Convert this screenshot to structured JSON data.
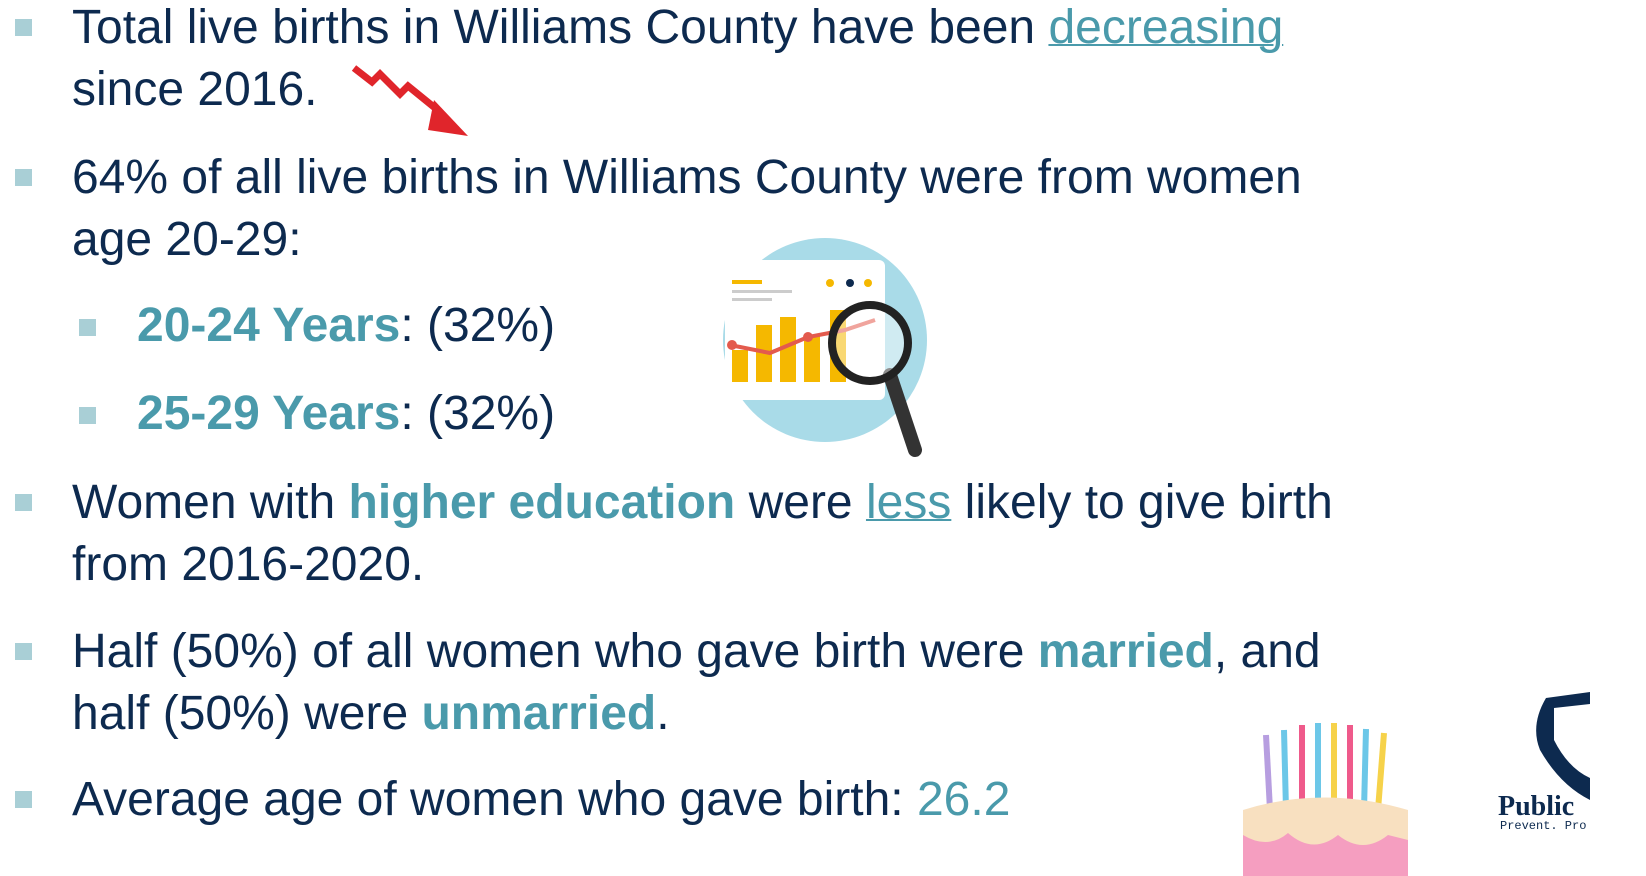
{
  "bullets": [
    {
      "text": "Total live births in Williams County have been ",
      "link": "decreasing",
      "end": "since 2016."
    },
    {
      "text": "64% of all live births in Williams County were from women",
      "end": "age 20-29:",
      "sub": [
        {
          "label": "20-24 Years",
          "value": ": (32%)"
        },
        {
          "label": "25-29 Years",
          "value": ": (32%)"
        }
      ]
    },
    {
      "text": "Women with ",
      "strong": "higher education",
      "mid": " were ",
      "link": "less",
      "tail": " likely to give birth",
      "end": "from 2016-2020."
    },
    {
      "text": "Half (50%) of all women who gave birth were ",
      "strong": "married",
      "tail": ", and",
      "end": "half (50%) were ",
      "strong2": "unmarried",
      "dot": "."
    },
    {
      "text": "Average age of women who gave birth: ",
      "value": "26.2"
    }
  ],
  "logo": {
    "name": "Public",
    "tagline": "Prevent. Pro"
  }
}
